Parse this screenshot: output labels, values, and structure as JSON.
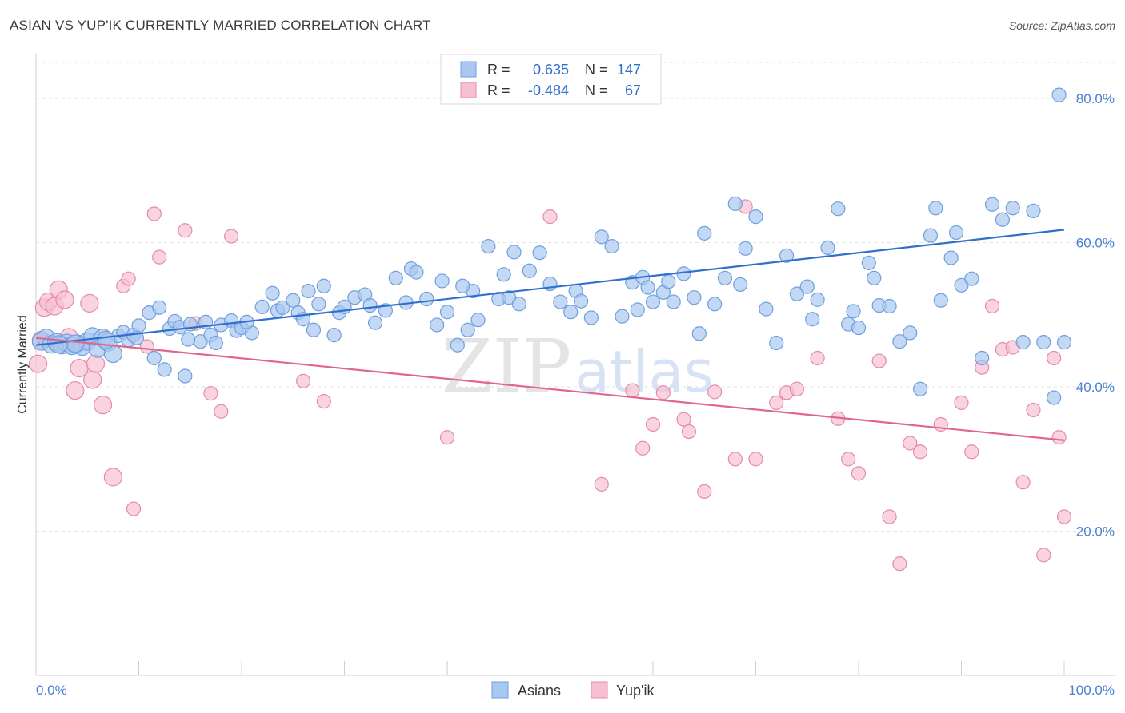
{
  "title": "ASIAN VS YUP'IK CURRENTLY MARRIED CORRELATION CHART",
  "source": "Source: ZipAtlas.com",
  "colors": {
    "asian_fill": "#a9c8f0",
    "asian_stroke": "#6f9fdc",
    "asian_line": "#2f6fd0",
    "yupik_fill": "#f6c0d2",
    "yupik_stroke": "#e68aaa",
    "yupik_line": "#e0668f",
    "tick_text": "#4a7fd4"
  },
  "legend_top": {
    "asians": {
      "r_label": "R =",
      "r_value": "0.635",
      "n_label": "N =",
      "n_value": "147"
    },
    "yupik": {
      "r_label": "R =",
      "r_value": "-0.484",
      "n_label": "N =",
      "n_value": "67"
    }
  },
  "legend_bottom": {
    "asians": "Asians",
    "yupik": "Yup'ik"
  },
  "watermark": {
    "zip": "ZIP",
    "atlas": "atlas"
  },
  "chart_data": {
    "type": "scatter",
    "xlabel": "",
    "ylabel": "Currently Married",
    "xlim": [
      0,
      100
    ],
    "ylim": [
      0,
      85
    ],
    "x_tick_labels": [
      "0.0%",
      "100.0%"
    ],
    "y_ticks": [
      20,
      40,
      60,
      80
    ],
    "y_tick_labels": [
      "20.0%",
      "40.0%",
      "60.0%",
      "80.0%"
    ],
    "grid": true,
    "series": [
      {
        "name": "Asians",
        "trend": [
          [
            0,
            45.8
          ],
          [
            100,
            61.8
          ]
        ],
        "points": [
          [
            0.5,
            46.3
          ],
          [
            1,
            46.8
          ],
          [
            1.5,
            45.9
          ],
          [
            2,
            46.2
          ],
          [
            2.5,
            45.8
          ],
          [
            3,
            46.1
          ],
          [
            3.5,
            45.7
          ],
          [
            4,
            46.0
          ],
          [
            4.5,
            45.6
          ],
          [
            5,
            46.3
          ],
          [
            5.5,
            47.0
          ],
          [
            6,
            45.3
          ],
          [
            6.5,
            46.8
          ],
          [
            7,
            46.2
          ],
          [
            7.5,
            44.6
          ],
          [
            8,
            47.1
          ],
          [
            8.5,
            47.6
          ],
          [
            9,
            46.5
          ],
          [
            9.5,
            47.2
          ],
          [
            10,
            48.5
          ],
          [
            11,
            50.3
          ],
          [
            11.5,
            44.0
          ],
          [
            12,
            51.0
          ],
          [
            13,
            48.1
          ],
          [
            13.5,
            49.1
          ],
          [
            14,
            48.3
          ],
          [
            14.5,
            41.5
          ],
          [
            15,
            48.7
          ],
          [
            16,
            46.3
          ],
          [
            16.5,
            49.0
          ],
          [
            17,
            47.2
          ],
          [
            17.5,
            46.1
          ],
          [
            18,
            48.6
          ],
          [
            19,
            49.2
          ],
          [
            19.5,
            47.8
          ],
          [
            20,
            48.2
          ],
          [
            21,
            47.5
          ],
          [
            22,
            51.1
          ],
          [
            23,
            53.0
          ],
          [
            23.5,
            50.6
          ],
          [
            24,
            51.0
          ],
          [
            25,
            52.0
          ],
          [
            25.5,
            50.3
          ],
          [
            26,
            49.4
          ],
          [
            27,
            47.9
          ],
          [
            27.5,
            51.5
          ],
          [
            28,
            54.0
          ],
          [
            29,
            47.2
          ],
          [
            29.5,
            50.3
          ],
          [
            30,
            51.1
          ],
          [
            31,
            52.4
          ],
          [
            32,
            52.8
          ],
          [
            32.5,
            51.3
          ],
          [
            33,
            48.9
          ],
          [
            34,
            50.6
          ],
          [
            35,
            55.1
          ],
          [
            36,
            51.7
          ],
          [
            36.5,
            56.4
          ],
          [
            37,
            55.9
          ],
          [
            38,
            52.2
          ],
          [
            39,
            48.6
          ],
          [
            39.5,
            54.7
          ],
          [
            40,
            50.4
          ],
          [
            41,
            45.8
          ],
          [
            42,
            47.9
          ],
          [
            42.5,
            53.3
          ],
          [
            43,
            49.3
          ],
          [
            44,
            59.5
          ],
          [
            45,
            52.2
          ],
          [
            45.5,
            55.6
          ],
          [
            46,
            52.4
          ],
          [
            46.5,
            58.7
          ],
          [
            47,
            51.5
          ],
          [
            48,
            56.1
          ],
          [
            49,
            58.6
          ],
          [
            50,
            54.3
          ],
          [
            51,
            51.8
          ],
          [
            52,
            50.4
          ],
          [
            52.5,
            53.3
          ],
          [
            53,
            51.9
          ],
          [
            54,
            49.6
          ],
          [
            55,
            60.8
          ],
          [
            56,
            59.5
          ],
          [
            57,
            49.8
          ],
          [
            58,
            54.5
          ],
          [
            59,
            55.2
          ],
          [
            59.5,
            53.8
          ],
          [
            60,
            51.8
          ],
          [
            61,
            53.1
          ],
          [
            62,
            51.8
          ],
          [
            63,
            55.7
          ],
          [
            64,
            52.4
          ],
          [
            64.5,
            47.4
          ],
          [
            65,
            61.3
          ],
          [
            66,
            51.5
          ],
          [
            67,
            55.1
          ],
          [
            68,
            65.4
          ],
          [
            68.5,
            54.2
          ],
          [
            69,
            59.2
          ],
          [
            70,
            63.6
          ],
          [
            71,
            50.8
          ],
          [
            72,
            46.1
          ],
          [
            73,
            58.2
          ],
          [
            74,
            52.9
          ],
          [
            75,
            53.9
          ],
          [
            75.5,
            49.4
          ],
          [
            76,
            52.1
          ],
          [
            77,
            59.3
          ],
          [
            78,
            64.7
          ],
          [
            79,
            48.7
          ],
          [
            79.5,
            50.5
          ],
          [
            80,
            48.2
          ],
          [
            81,
            57.2
          ],
          [
            81.5,
            55.1
          ],
          [
            82,
            51.3
          ],
          [
            83,
            51.2
          ],
          [
            84,
            46.3
          ],
          [
            86,
            39.7
          ],
          [
            87,
            61.0
          ],
          [
            87.5,
            64.8
          ],
          [
            88,
            52.0
          ],
          [
            89,
            57.9
          ],
          [
            89.5,
            61.4
          ],
          [
            90,
            54.1
          ],
          [
            91,
            55.0
          ],
          [
            93,
            65.3
          ],
          [
            94,
            63.2
          ],
          [
            95,
            64.8
          ],
          [
            97,
            64.4
          ],
          [
            99,
            38.5
          ],
          [
            99.5,
            80.5
          ],
          [
            100,
            46.2
          ],
          [
            98,
            46.2
          ],
          [
            96,
            46.2
          ],
          [
            92,
            44.0
          ],
          [
            85,
            47.5
          ],
          [
            58.5,
            50.7
          ],
          [
            61.5,
            54.6
          ],
          [
            41.5,
            54.0
          ],
          [
            26.5,
            53.3
          ],
          [
            20.5,
            49.0
          ],
          [
            14.8,
            46.6
          ],
          [
            12.5,
            42.4
          ],
          [
            9.8,
            46.8
          ],
          [
            6.8,
            46.5
          ],
          [
            3.8,
            46.0
          ],
          [
            2.2,
            45.9
          ]
        ]
      },
      {
        "name": "Yup'ik",
        "trend": [
          [
            0,
            46.8
          ],
          [
            100,
            32.6
          ]
        ],
        "points": [
          [
            0.2,
            43.2
          ],
          [
            0.5,
            46.5
          ],
          [
            0.8,
            51.0
          ],
          [
            1.2,
            51.8
          ],
          [
            1.8,
            51.2
          ],
          [
            2.2,
            53.5
          ],
          [
            2.8,
            52.1
          ],
          [
            3.2,
            46.9
          ],
          [
            3.8,
            39.5
          ],
          [
            4.2,
            42.6
          ],
          [
            5.2,
            51.6
          ],
          [
            5.5,
            41.0
          ],
          [
            5.8,
            43.2
          ],
          [
            6.5,
            37.5
          ],
          [
            7.5,
            27.5
          ],
          [
            8.5,
            54.0
          ],
          [
            9,
            55.0
          ],
          [
            9.5,
            23.1
          ],
          [
            10.8,
            45.6
          ],
          [
            11.5,
            64.0
          ],
          [
            12,
            58.0
          ],
          [
            14.5,
            61.7
          ],
          [
            15.5,
            48.8
          ],
          [
            17,
            39.1
          ],
          [
            18,
            36.6
          ],
          [
            19,
            60.9
          ],
          [
            26,
            40.8
          ],
          [
            28,
            38.0
          ],
          [
            40,
            33.0
          ],
          [
            50,
            63.6
          ],
          [
            55,
            26.5
          ],
          [
            58,
            39.5
          ],
          [
            59,
            31.5
          ],
          [
            60,
            34.8
          ],
          [
            61,
            39.2
          ],
          [
            63,
            35.5
          ],
          [
            65,
            25.5
          ],
          [
            66,
            39.3
          ],
          [
            68,
            30.0
          ],
          [
            70,
            30.0
          ],
          [
            72,
            37.8
          ],
          [
            73,
            39.2
          ],
          [
            74,
            39.7
          ],
          [
            76,
            44.0
          ],
          [
            78,
            35.6
          ],
          [
            79,
            30.0
          ],
          [
            80,
            28.0
          ],
          [
            82,
            43.6
          ],
          [
            83,
            22.0
          ],
          [
            84,
            15.5
          ],
          [
            85,
            32.2
          ],
          [
            86,
            31.0
          ],
          [
            88,
            34.8
          ],
          [
            90,
            37.8
          ],
          [
            91,
            31.0
          ],
          [
            92,
            42.7
          ],
          [
            93,
            51.2
          ],
          [
            94,
            45.2
          ],
          [
            95,
            45.5
          ],
          [
            96,
            26.8
          ],
          [
            97,
            36.8
          ],
          [
            98,
            16.7
          ],
          [
            99,
            44.0
          ],
          [
            99.5,
            33.0
          ],
          [
            100,
            22.0
          ],
          [
            63.5,
            33.8
          ],
          [
            69,
            65.0
          ]
        ]
      }
    ]
  }
}
